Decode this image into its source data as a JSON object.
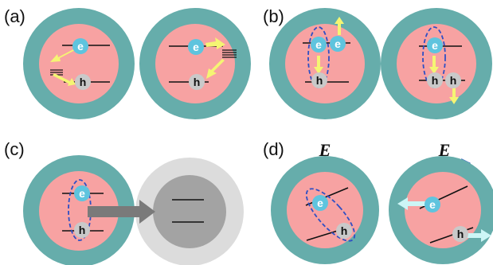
{
  "panels": {
    "a": {
      "label": "(a)"
    },
    "b": {
      "label": "(b)"
    },
    "c": {
      "label": "(c)"
    },
    "d": {
      "label": "(d)"
    }
  },
  "particles": {
    "electron": "e",
    "hole": "h"
  },
  "field": {
    "symbol": "E"
  },
  "colors": {
    "shell": "#66adab",
    "core": "#f7a2a2",
    "electron": "#5fc4de",
    "hole": "#c9c9c9",
    "arrow_yellow": "#f5f573",
    "arrow_cyan": "#ccf6f6",
    "field_arrow": "#4472c4",
    "ellipse": "#2f4fc4",
    "acceptor_shell": "#dcdcdc",
    "acceptor_core": "#a3a3a3",
    "transfer_arrow": "#7a7a7a"
  }
}
